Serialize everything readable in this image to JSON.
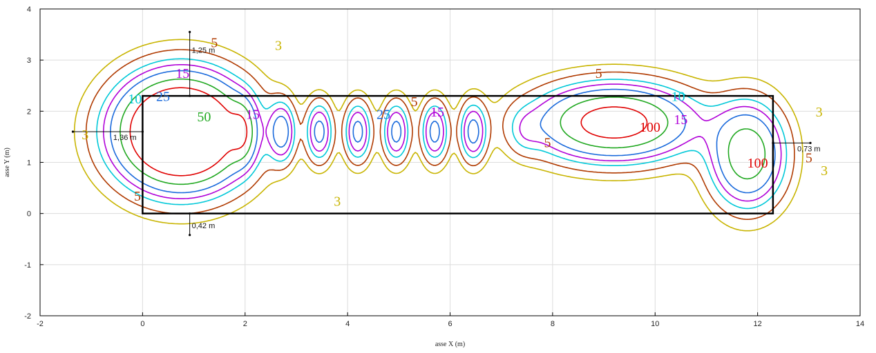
{
  "chart_data": {
    "type": "contour",
    "xlabel": "asse X (m)",
    "ylabel": "asse Y (m)",
    "xlim": [
      -2,
      14
    ],
    "ylim": [
      -2,
      4
    ],
    "xticks": [
      "-2",
      "0",
      "2",
      "4",
      "6",
      "8",
      "10",
      "12",
      "14"
    ],
    "yticks": [
      "-2",
      "-1",
      "0",
      "1",
      "2",
      "3",
      "4"
    ],
    "grid": true,
    "levels": [
      {
        "value": "3",
        "color": "#c8b400"
      },
      {
        "value": "5",
        "color": "#b03a00"
      },
      {
        "value": "10",
        "color": "#00c8d8"
      },
      {
        "value": "15",
        "color": "#b000d8"
      },
      {
        "value": "25",
        "color": "#1a6adc"
      },
      {
        "value": "50",
        "color": "#20a820"
      },
      {
        "value": "100",
        "color": "#e00000"
      }
    ],
    "room_rectangle": {
      "x0": 0,
      "y0": 0,
      "x1": 12.3,
      "y1": 2.3
    },
    "sources": [
      {
        "x": 0.75,
        "y": 1.6,
        "strength": 4.2,
        "sx": 0.75,
        "sy": 0.65
      },
      {
        "x": 1.95,
        "y": 1.6,
        "strength": 0.9,
        "sx": 0.16,
        "sy": 0.38
      },
      {
        "x": 2.72,
        "y": 1.6,
        "strength": 0.9,
        "sx": 0.17,
        "sy": 0.38
      },
      {
        "x": 3.45,
        "y": 1.6,
        "strength": 0.9,
        "sx": 0.17,
        "sy": 0.38
      },
      {
        "x": 4.2,
        "y": 1.6,
        "strength": 0.9,
        "sx": 0.17,
        "sy": 0.38
      },
      {
        "x": 4.95,
        "y": 1.6,
        "strength": 0.9,
        "sx": 0.17,
        "sy": 0.38
      },
      {
        "x": 5.7,
        "y": 1.6,
        "strength": 0.9,
        "sx": 0.17,
        "sy": 0.38
      },
      {
        "x": 6.45,
        "y": 1.6,
        "strength": 0.9,
        "sx": 0.17,
        "sy": 0.38
      },
      {
        "x": 7.45,
        "y": 1.6,
        "strength": 0.25,
        "sx": 0.22,
        "sy": 0.3
      },
      {
        "x": 9.2,
        "y": 1.78,
        "strength": 2.2,
        "sx": 0.95,
        "sy": 0.45
      },
      {
        "x": 11.8,
        "y": 1.15,
        "strength": 1.6,
        "sx": 0.45,
        "sy": 0.62
      }
    ],
    "dimension_markers": [
      {
        "label": "1,25 m",
        "x": 0.92,
        "y_from": 2.3,
        "y_to": 3.55,
        "orientation": "vertical"
      },
      {
        "label": "0,42 m",
        "x": 0.92,
        "y_from": -0.42,
        "y_to": 0,
        "orientation": "vertical"
      },
      {
        "label": "1,36 m",
        "y": 1.6,
        "x_from": -1.36,
        "x_to": 0,
        "orientation": "horizontal"
      },
      {
        "label": "0,73 m",
        "y": 1.38,
        "x_from": 12.3,
        "x_to": 13.03,
        "orientation": "horizontal"
      }
    ],
    "contour_labels": [
      {
        "text": "3",
        "x": 2.65,
        "y": 3.2,
        "color": "#c8b400"
      },
      {
        "text": "3",
        "x": -1.12,
        "y": 1.45,
        "color": "#c8b400"
      },
      {
        "text": "3",
        "x": 3.8,
        "y": 0.15,
        "color": "#c8b400"
      },
      {
        "text": "3",
        "x": 13.2,
        "y": 1.9,
        "color": "#c8b400"
      },
      {
        "text": "3",
        "x": 13.3,
        "y": 0.75,
        "color": "#c8b400"
      },
      {
        "text": "5",
        "x": 1.4,
        "y": 3.25,
        "color": "#b03a00"
      },
      {
        "text": "5",
        "x": -0.1,
        "y": 0.25,
        "color": "#b03a00"
      },
      {
        "text": "5",
        "x": 5.3,
        "y": 2.1,
        "color": "#b03a00"
      },
      {
        "text": "5",
        "x": 8.9,
        "y": 2.65,
        "color": "#b03a00"
      },
      {
        "text": "5",
        "x": 7.9,
        "y": 1.3,
        "color": "#b03a00"
      },
      {
        "text": "5",
        "x": 13.0,
        "y": 1.0,
        "color": "#b03a00"
      },
      {
        "text": "10",
        "x": -0.15,
        "y": 2.15,
        "color": "#00c8d8"
      },
      {
        "text": "10",
        "x": 10.45,
        "y": 2.2,
        "color": "#00c8d8"
      },
      {
        "text": "15",
        "x": 0.78,
        "y": 2.65,
        "color": "#b000d8"
      },
      {
        "text": "15",
        "x": 2.15,
        "y": 1.85,
        "color": "#b000d8"
      },
      {
        "text": "15",
        "x": 5.75,
        "y": 1.9,
        "color": "#b000d8"
      },
      {
        "text": "15",
        "x": 10.5,
        "y": 1.75,
        "color": "#b000d8"
      },
      {
        "text": "25",
        "x": 0.4,
        "y": 2.2,
        "color": "#1a6adc"
      },
      {
        "text": "25",
        "x": 4.7,
        "y": 1.85,
        "color": "#1a6adc"
      },
      {
        "text": "50",
        "x": 1.2,
        "y": 1.8,
        "color": "#20a820"
      },
      {
        "text": "100",
        "x": 9.9,
        "y": 1.6,
        "color": "#e00000"
      },
      {
        "text": "100",
        "x": 12.0,
        "y": 0.9,
        "color": "#e00000"
      }
    ]
  }
}
